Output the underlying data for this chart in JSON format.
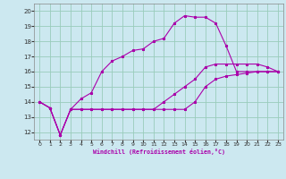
{
  "xlabel": "Windchill (Refroidissement éolien,°C)",
  "bg_color": "#cce8f0",
  "grid_color": "#99ccbb",
  "line_color": "#aa00aa",
  "xlim": [
    -0.5,
    23.5
  ],
  "ylim": [
    11.5,
    20.5
  ],
  "xticks": [
    0,
    1,
    2,
    3,
    4,
    5,
    6,
    7,
    8,
    9,
    10,
    11,
    12,
    13,
    14,
    15,
    16,
    17,
    18,
    19,
    20,
    21,
    22,
    23
  ],
  "yticks": [
    12,
    13,
    14,
    15,
    16,
    17,
    18,
    19,
    20
  ],
  "curve1_x": [
    0,
    1,
    2,
    3,
    4,
    5,
    6,
    7,
    8,
    9,
    10,
    11,
    12,
    13,
    14,
    15,
    16,
    17,
    18,
    19,
    20,
    21,
    22,
    23
  ],
  "curve1_y": [
    14.0,
    13.6,
    11.8,
    13.5,
    14.2,
    14.6,
    16.0,
    16.7,
    17.0,
    17.4,
    17.5,
    18.0,
    18.2,
    19.2,
    19.7,
    19.6,
    19.6,
    19.2,
    17.7,
    16.0,
    16.0,
    16.0,
    16.0,
    16.0
  ],
  "curve2_x": [
    0,
    1,
    2,
    3,
    4,
    5,
    6,
    7,
    8,
    9,
    10,
    11,
    12,
    13,
    14,
    15,
    16,
    17,
    18,
    19,
    20,
    21,
    22,
    23
  ],
  "curve2_y": [
    14.0,
    13.6,
    11.8,
    13.5,
    13.5,
    13.5,
    13.5,
    13.5,
    13.5,
    13.5,
    13.5,
    13.5,
    14.0,
    14.5,
    15.0,
    15.5,
    16.3,
    16.5,
    16.5,
    16.5,
    16.5,
    16.5,
    16.3,
    16.0
  ],
  "curve3_x": [
    0,
    1,
    2,
    3,
    4,
    5,
    6,
    7,
    8,
    9,
    10,
    11,
    12,
    13,
    14,
    15,
    16,
    17,
    18,
    19,
    20,
    21,
    22,
    23
  ],
  "curve3_y": [
    14.0,
    13.6,
    11.8,
    13.5,
    13.5,
    13.5,
    13.5,
    13.5,
    13.5,
    13.5,
    13.5,
    13.5,
    13.5,
    13.5,
    13.5,
    14.0,
    15.0,
    15.5,
    15.7,
    15.8,
    15.9,
    16.0,
    16.0,
    16.0
  ]
}
